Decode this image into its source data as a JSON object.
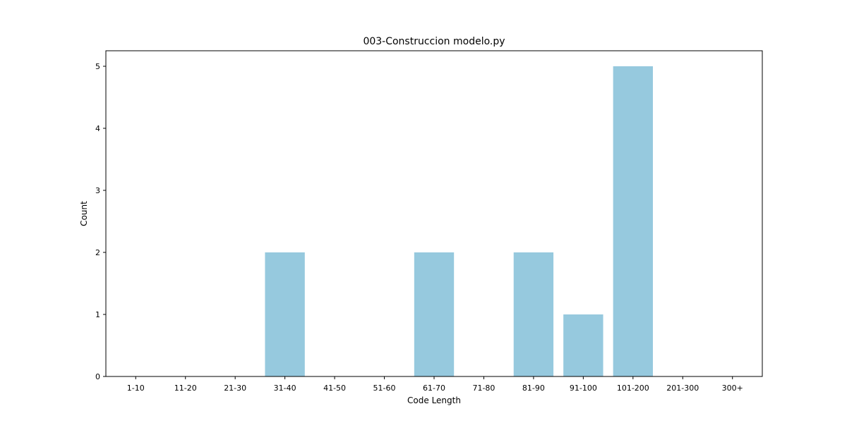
{
  "chart_data": {
    "type": "bar",
    "title": "003-Construccion modelo.py",
    "xlabel": "Code Length",
    "ylabel": "Count",
    "categories": [
      "1-10",
      "11-20",
      "21-30",
      "31-40",
      "41-50",
      "51-60",
      "61-70",
      "71-80",
      "81-90",
      "91-100",
      "101-200",
      "201-300",
      "300+"
    ],
    "values": [
      0,
      0,
      0,
      2,
      0,
      0,
      2,
      0,
      2,
      1,
      5,
      0,
      0
    ],
    "ylim": [
      0,
      5.25
    ],
    "yticks": [
      0,
      1,
      2,
      3,
      4,
      5
    ],
    "grid": false,
    "bar_color": "#96c9de"
  }
}
